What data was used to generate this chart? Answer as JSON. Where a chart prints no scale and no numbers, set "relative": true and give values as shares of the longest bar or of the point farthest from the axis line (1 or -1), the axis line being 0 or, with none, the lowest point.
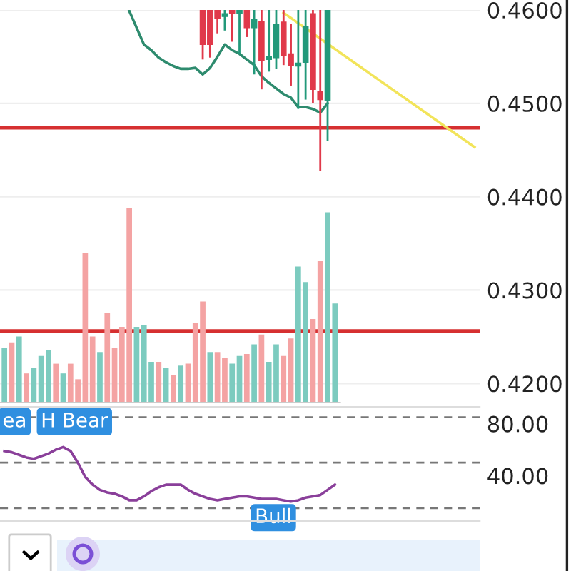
{
  "chart_data": [
    {
      "type": "candlestick",
      "categories": [
        null,
        null,
        null,
        null,
        null,
        null,
        null,
        null,
        null,
        null,
        null,
        null,
        null,
        null,
        null,
        null,
        null,
        null,
        null,
        null,
        null,
        null,
        null,
        null,
        null,
        null,
        null,
        null,
        null,
        null,
        null,
        null,
        null,
        null,
        null,
        null,
        null,
        null,
        null,
        null,
        null,
        null,
        null,
        null,
        null,
        null,
        null,
        null,
        null,
        null,
        null,
        null,
        null,
        null,
        null,
        null,
        null,
        null,
        null,
        null,
        null,
        null,
        null,
        null,
        null
      ],
      "ohlc": [
        null,
        null,
        null,
        null,
        null,
        null,
        null,
        null,
        null,
        null,
        null,
        null,
        null,
        null,
        null,
        null,
        null,
        null,
        null,
        null,
        null,
        null,
        null,
        null,
        null,
        null,
        null,
        [
          0.46,
          0.46,
          0.4547,
          0.4563
        ],
        [
          0.46,
          0.46,
          0.4549,
          0.4563
        ],
        [
          0.46,
          0.46,
          0.4575,
          0.4591
        ],
        [
          0.4593,
          0.46,
          0.4578,
          0.4596
        ],
        [
          0.46,
          0.46,
          0.4566,
          0.4596
        ],
        [
          0.4596,
          0.46,
          0.4553,
          0.46
        ],
        [
          0.46,
          0.46,
          0.4571,
          0.4581
        ],
        [
          0.4581,
          0.46,
          0.4531,
          0.459
        ],
        [
          0.4588,
          0.46,
          0.4515,
          0.4546
        ],
        [
          0.4547,
          0.46,
          0.4534,
          0.455
        ],
        [
          0.4549,
          0.46,
          0.4537,
          0.4585
        ],
        [
          0.4587,
          0.46,
          0.4541,
          0.4551
        ],
        [
          0.4553,
          0.4585,
          0.4519,
          0.4541
        ],
        [
          0.454,
          0.46,
          0.4494,
          0.4543
        ],
        [
          0.4544,
          0.46,
          0.4504,
          0.4582
        ],
        [
          0.4596,
          0.46,
          0.45,
          0.4515
        ],
        [
          0.4513,
          0.46,
          0.4428,
          0.4504
        ],
        [
          0.4503,
          0.46,
          0.446,
          0.46
        ],
        null,
        null,
        null,
        null,
        null,
        null,
        null,
        null,
        null,
        null,
        null,
        null,
        null,
        null,
        null,
        null,
        null,
        null,
        null,
        null
      ],
      "colors": [
        null,
        null,
        null,
        null,
        null,
        null,
        null,
        null,
        null,
        null,
        null,
        null,
        null,
        null,
        null,
        null,
        null,
        null,
        null,
        null,
        null,
        null,
        null,
        null,
        null,
        null,
        null,
        "#e0394a",
        "#e0394a",
        "#e0394a",
        "#22997a",
        "#e0394a",
        "#22997a",
        "#e0394a",
        "#22997a",
        "#e0394a",
        "#22997a",
        "#22997a",
        "#e0394a",
        "#e0394a",
        "#22997a",
        "#22997a",
        "#e0394a",
        "#e0394a",
        "#22997a",
        null,
        null,
        null,
        null,
        null,
        null,
        null,
        null,
        null,
        null,
        null,
        null,
        null,
        null,
        null,
        null,
        null,
        null,
        null,
        null
      ],
      "series": [
        {
          "type": "line",
          "color": "#2e8b6e",
          "values": [
            null,
            null,
            null,
            null,
            null,
            null,
            null,
            null,
            null,
            null,
            null,
            null,
            null,
            null,
            null,
            null,
            null,
            0.4599,
            0.4581,
            0.4563,
            0.4557,
            0.4549,
            0.4544,
            0.454,
            0.4537,
            0.4537,
            0.4538,
            0.4531,
            0.4538,
            0.455,
            0.4563,
            0.4557,
            0.4553,
            0.4547,
            0.4541,
            0.4529,
            0.4522,
            0.4516,
            0.451,
            0.4506,
            0.4496,
            0.4496,
            0.4494,
            0.449,
            0.45,
            null,
            null,
            null,
            null,
            null,
            null,
            null,
            null,
            null,
            null,
            null,
            null,
            null,
            null,
            null,
            null,
            null,
            null,
            null,
            null
          ]
        },
        {
          "type": "line",
          "color": "#f2e45a",
          "values": [
            null,
            null,
            null,
            null,
            null,
            null,
            null,
            null,
            null,
            null,
            null,
            null,
            null,
            null,
            null,
            null,
            null,
            null,
            null,
            null,
            null,
            null,
            null,
            null,
            null,
            null,
            null,
            null,
            null,
            null,
            null,
            null,
            null,
            null,
            null,
            null,
            null,
            null,
            0.4597,
            null,
            null,
            null,
            null,
            null,
            null,
            null,
            null,
            null,
            null,
            null,
            null,
            null,
            null,
            null,
            null,
            null,
            null,
            null,
            null,
            null,
            null,
            null,
            null,
            null,
            0.4453
          ]
        }
      ],
      "ylim": [
        0.4175,
        0.46
      ],
      "yticks": [
        {
          "value": 0.42,
          "label": "0.4200"
        },
        {
          "value": 0.43,
          "label": "0.4300"
        },
        {
          "value": 0.44,
          "label": "0.4400"
        },
        {
          "value": 0.45,
          "label": "0.4500"
        },
        {
          "value": 0.46,
          "label": "0.4600"
        }
      ],
      "ref_lines": [
        {
          "axis": "y",
          "value": 0.4474,
          "color": "#d63031",
          "line_style": "solid"
        },
        {
          "axis": "y",
          "value": 0.4256,
          "color": "#d63031",
          "line_style": "solid"
        }
      ],
      "grid": "y",
      "tick_labels": "y"
    },
    {
      "type": "bar",
      "relative": true,
      "categories": [
        null,
        null,
        null,
        null,
        null,
        null,
        null,
        null,
        null,
        null,
        null,
        null,
        null,
        null,
        null,
        null,
        null,
        null,
        null,
        null,
        null,
        null,
        null,
        null,
        null,
        null,
        null,
        null,
        null,
        null,
        null,
        null,
        null,
        null,
        null,
        null,
        null,
        null,
        null,
        null,
        null,
        null,
        null,
        null,
        null,
        null
      ],
      "values": [
        0.28,
        0.31,
        0.34,
        0.15,
        0.18,
        0.24,
        0.27,
        0.2,
        0.15,
        0.2,
        0.12,
        0.77,
        0.34,
        0.26,
        0.46,
        0.28,
        0.39,
        1.0,
        0.39,
        0.4,
        0.21,
        0.21,
        0.18,
        0.14,
        0.19,
        0.2,
        0.41,
        0.52,
        0.26,
        0.26,
        0.23,
        0.2,
        0.24,
        0.25,
        0.3,
        0.35,
        0.21,
        0.3,
        0.24,
        0.33,
        0.7,
        0.62,
        0.43,
        0.73,
        0.98,
        0.51
      ],
      "colors": [
        "#7ccbbf",
        "#f4a3a3",
        "#7ccbbf",
        "#f4a3a3",
        "#7ccbbf",
        "#7ccbbf",
        "#7ccbbf",
        "#f4a3a3",
        "#7ccbbf",
        "#f4a3a3",
        "#f4a3a3",
        "#f4a3a3",
        "#f4a3a3",
        "#7ccbbf",
        "#f4a3a3",
        "#f4a3a3",
        "#f4a3a3",
        "#f4a3a3",
        "#7ccbbf",
        "#7ccbbf",
        "#7ccbbf",
        "#f4a3a3",
        "#7ccbbf",
        "#f4a3a3",
        "#7ccbbf",
        "#f4a3a3",
        "#f4a3a3",
        "#f4a3a3",
        "#7ccbbf",
        "#f4a3a3",
        "#f4a3a3",
        "#7ccbbf",
        "#7ccbbf",
        "#f4a3a3",
        "#7ccbbf",
        "#f4a3a3",
        "#7ccbbf",
        "#7ccbbf",
        "#f4a3a3",
        "#f4a3a3",
        "#7ccbbf",
        "#7ccbbf",
        "#f4a3a3",
        "#f4a3a3",
        "#7ccbbf",
        "#7ccbbf"
      ],
      "tick_labels": false
    },
    {
      "type": "line",
      "categories": [
        null,
        null,
        null,
        null,
        null,
        null,
        null,
        null,
        null,
        null,
        null,
        null,
        null,
        null,
        null,
        null,
        null,
        null,
        null,
        null,
        null,
        null,
        null,
        null,
        null,
        null,
        null,
        null,
        null,
        null,
        null,
        null,
        null,
        null,
        null,
        null,
        null,
        null,
        null,
        null,
        null,
        null,
        null,
        null,
        null,
        null,
        null,
        null,
        null,
        null,
        null,
        null,
        null,
        null,
        null,
        null,
        null,
        null,
        null,
        null,
        null,
        null,
        null,
        null,
        null
      ],
      "series": [
        {
          "color": "#8a3f9a",
          "values": [
            59,
            58,
            56,
            54,
            53,
            55,
            57,
            60,
            62,
            59,
            50,
            39,
            33,
            29,
            27,
            26,
            24,
            21,
            21,
            24,
            28,
            31,
            33,
            33,
            33,
            29,
            26,
            24,
            22,
            21,
            22,
            23,
            24,
            24,
            23,
            22,
            22,
            22,
            21,
            20,
            21,
            23,
            24,
            25,
            29,
            33,
            null,
            null,
            null,
            null,
            null,
            null,
            null,
            null,
            null,
            null,
            null,
            null,
            null,
            null,
            null,
            null,
            null,
            null,
            null
          ]
        }
      ],
      "ylim": [
        5,
        93
      ],
      "yticks": [
        {
          "value": 40,
          "label": "40.00"
        },
        {
          "value": 80,
          "label": "80.00"
        }
      ],
      "ref_lines": [
        {
          "axis": "y",
          "value": 85,
          "color": "#777777",
          "line_style": "dashed"
        },
        {
          "axis": "y",
          "value": 50,
          "color": "#777777",
          "line_style": "dashed"
        },
        {
          "axis": "y",
          "value": 15,
          "color": "#777777",
          "line_style": "dashed"
        }
      ],
      "annotations": [
        "ea",
        "H Bear",
        "Bull"
      ],
      "tick_labels": "y"
    }
  ]
}
